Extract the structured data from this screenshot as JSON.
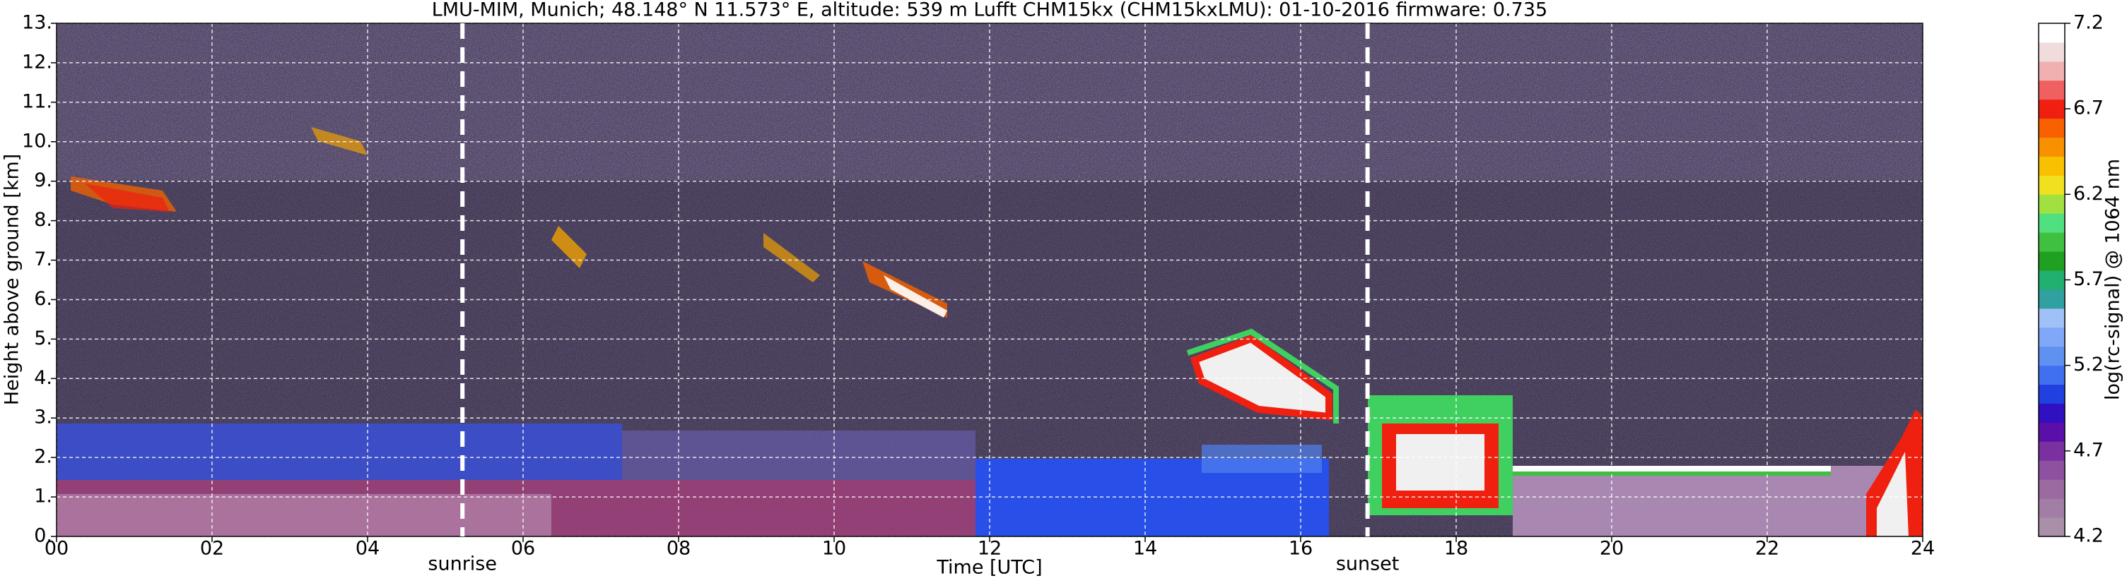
{
  "chart_data": {
    "type": "heatmap",
    "title": "LMU-MIM, Munich; 48.148° N 11.573° E, altitude: 539 m    Lufft CHM15kx (CHM15kxLMU): 01-10-2016    firmware: 0.735",
    "xlabel": "Time [UTC]",
    "ylabel": "Height above ground [km]",
    "xlim": [
      0,
      24
    ],
    "xticks": [
      {
        "value": 0,
        "label": "00"
      },
      {
        "value": 2,
        "label": "02"
      },
      {
        "value": 4,
        "label": "04"
      },
      {
        "value": 6,
        "label": "06"
      },
      {
        "value": 8,
        "label": "08"
      },
      {
        "value": 10,
        "label": "10"
      },
      {
        "value": 12,
        "label": "12"
      },
      {
        "value": 14,
        "label": "14"
      },
      {
        "value": 16,
        "label": "16"
      },
      {
        "value": 18,
        "label": "18"
      },
      {
        "value": 20,
        "label": "20"
      },
      {
        "value": 22,
        "label": "22"
      },
      {
        "value": 24,
        "label": "24"
      }
    ],
    "ylim": [
      0,
      13
    ],
    "yticks": [
      {
        "value": 0,
        "label": "0."
      },
      {
        "value": 1,
        "label": "1."
      },
      {
        "value": 2,
        "label": "2."
      },
      {
        "value": 3,
        "label": "3."
      },
      {
        "value": 4,
        "label": "4."
      },
      {
        "value": 5,
        "label": "5."
      },
      {
        "value": 6,
        "label": "6."
      },
      {
        "value": 7,
        "label": "7."
      },
      {
        "value": 8,
        "label": "8."
      },
      {
        "value": 9,
        "label": "9."
      },
      {
        "value": 10,
        "label": "10."
      },
      {
        "value": 11,
        "label": "11."
      },
      {
        "value": 12,
        "label": "12."
      },
      {
        "value": 13,
        "label": "13."
      }
    ],
    "grid": true,
    "annotations": [
      {
        "text": "sunrise",
        "x": 5.22
      },
      {
        "text": "sunset",
        "x": 16.86
      }
    ],
    "colorbar": {
      "label": "log(rc-signal) @ 1064 nm",
      "lim": [
        4.2,
        7.2
      ],
      "ticks": [
        4.2,
        4.7,
        5.2,
        5.7,
        6.2,
        6.7,
        7.2
      ],
      "colors": [
        "#a990a8",
        "#a27ea4",
        "#9a6aa0",
        "#8e50a0",
        "#7a30a0",
        "#5a10a8",
        "#3010c0",
        "#2040e0",
        "#4070f0",
        "#6090f0",
        "#80a8f8",
        "#a0c0f8",
        "#30a0a0",
        "#20b070",
        "#20a020",
        "#40c040",
        "#50e080",
        "#a0e040",
        "#f0e020",
        "#f8c000",
        "#f89000",
        "#f86000",
        "#f02010",
        "#f06060",
        "#f0b0b0",
        "#f0dcdc",
        "#ffffff"
      ]
    }
  }
}
